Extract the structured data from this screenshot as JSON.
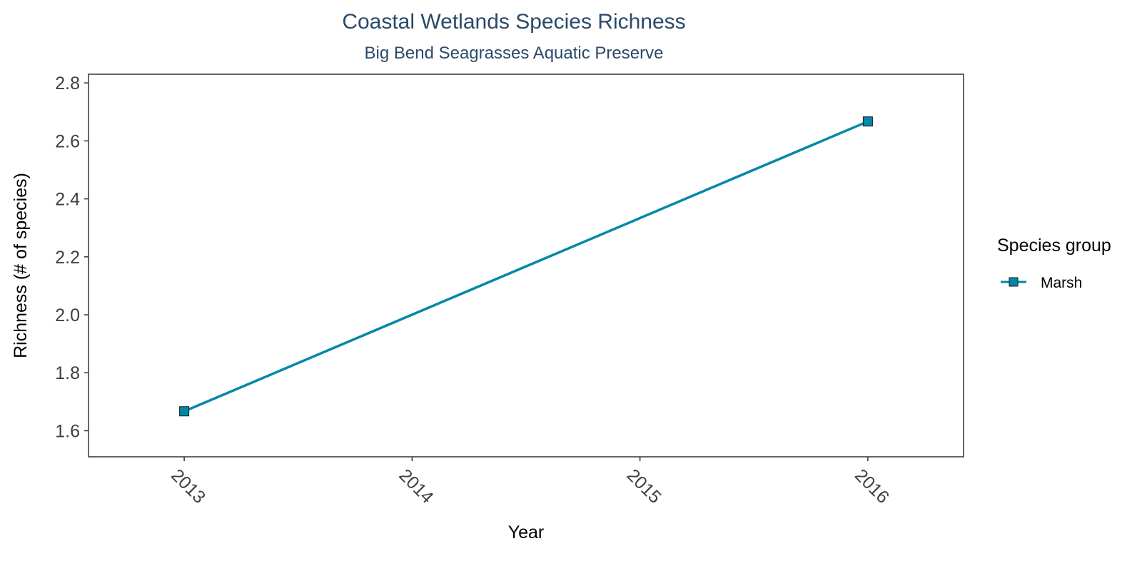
{
  "chart_data": {
    "type": "line",
    "title": "Coastal Wetlands Species Richness",
    "subtitle": "Big Bend Seagrasses Aquatic Preserve",
    "xlabel": "Year",
    "ylabel": "Richness (# of species)",
    "x": [
      2013,
      2016
    ],
    "x_ticks": [
      "2013",
      "2014",
      "2015",
      "2016"
    ],
    "y_ticks": [
      "1.6",
      "1.8",
      "2.0",
      "2.2",
      "2.4",
      "2.6",
      "2.8"
    ],
    "xlim": [
      2012.58,
      2016.42
    ],
    "ylim": [
      1.51,
      2.83
    ],
    "grid": false,
    "legend": {
      "title": "Species group",
      "position": "right"
    },
    "series": [
      {
        "name": "Marsh",
        "color": "#0088a8",
        "marker": "square",
        "values": [
          1.667,
          2.667
        ]
      }
    ]
  }
}
